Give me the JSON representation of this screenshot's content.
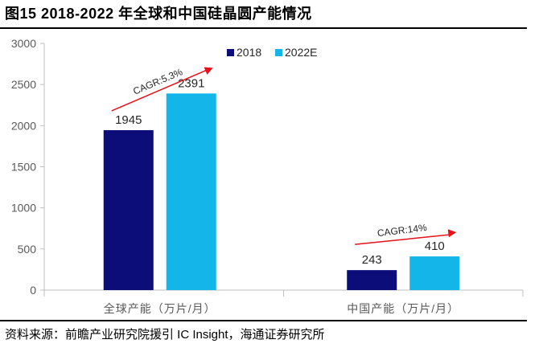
{
  "title": "图15 2018-2022 年全球和中国硅晶圆产能情况",
  "source": "资料来源：前瞻产业研究院援引 IC Insight，海通证券研究所",
  "colors": {
    "series_2018": "#0d0d7a",
    "series_2022E": "#14b6ea",
    "arrow": "#e8101a",
    "grid": "#d9d9d9",
    "axis": "#bfbfbf"
  },
  "chart_data": {
    "type": "bar",
    "title": "",
    "xlabel": "",
    "ylabel": "",
    "ylim": [
      0,
      3000
    ],
    "yticks": [
      0,
      500,
      1000,
      1500,
      2000,
      2500,
      3000
    ],
    "categories": [
      "全球产能（万片/月）",
      "中国产能（万片/月）"
    ],
    "series": [
      {
        "name": "2018",
        "values": [
          1945,
          243
        ]
      },
      {
        "name": "2022E",
        "values": [
          2391,
          410
        ]
      }
    ],
    "annotations": [
      "CAGR:5.3%",
      "CAGR:14%"
    ],
    "legend": "top-right"
  }
}
